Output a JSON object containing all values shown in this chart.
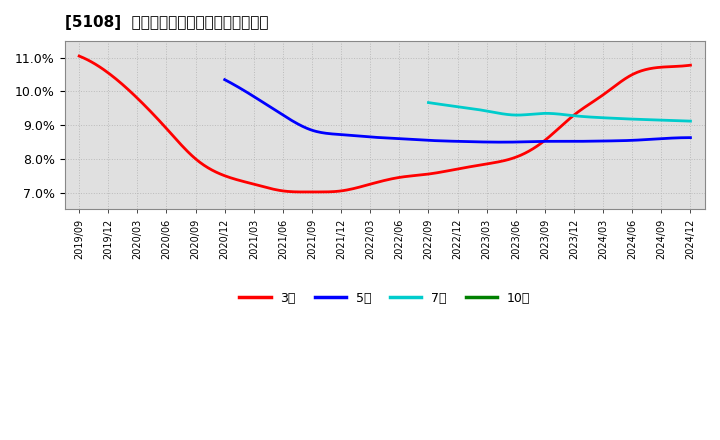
{
  "title": "[5108]  経常利益マージンの平均値の推移",
  "background_color": "#ffffff",
  "plot_background_color": "#e0e0e0",
  "grid_color": "#bbbbbb",
  "y_min": 6.5,
  "y_max": 11.5,
  "y_ticks": [
    7.0,
    8.0,
    9.0,
    10.0,
    11.0
  ],
  "series": {
    "3year": {
      "color": "#ff0000",
      "label": "3年",
      "points": [
        [
          "2019/09",
          11.05
        ],
        [
          "2019/12",
          10.55
        ],
        [
          "2020/03",
          9.8
        ],
        [
          "2020/06",
          8.9
        ],
        [
          "2020/09",
          8.0
        ],
        [
          "2020/12",
          7.5
        ],
        [
          "2021/03",
          7.25
        ],
        [
          "2021/06",
          7.05
        ],
        [
          "2021/09",
          7.02
        ],
        [
          "2021/12",
          7.05
        ],
        [
          "2022/03",
          7.25
        ],
        [
          "2022/06",
          7.45
        ],
        [
          "2022/09",
          7.55
        ],
        [
          "2022/12",
          7.7
        ],
        [
          "2023/03",
          7.85
        ],
        [
          "2023/06",
          8.05
        ],
        [
          "2023/09",
          8.55
        ],
        [
          "2023/12",
          9.3
        ],
        [
          "2024/03",
          9.9
        ],
        [
          "2024/06",
          10.5
        ],
        [
          "2024/09",
          10.72
        ],
        [
          "2024/12",
          10.78
        ]
      ]
    },
    "5year": {
      "color": "#0000ff",
      "label": "5年",
      "points": [
        [
          "2020/12",
          10.35
        ],
        [
          "2021/03",
          9.85
        ],
        [
          "2021/06",
          9.3
        ],
        [
          "2021/09",
          8.85
        ],
        [
          "2021/12",
          8.72
        ],
        [
          "2022/03",
          8.65
        ],
        [
          "2022/06",
          8.6
        ],
        [
          "2022/09",
          8.55
        ],
        [
          "2022/12",
          8.52
        ],
        [
          "2023/03",
          8.5
        ],
        [
          "2023/06",
          8.5
        ],
        [
          "2023/09",
          8.52
        ],
        [
          "2023/12",
          8.52
        ],
        [
          "2024/03",
          8.53
        ],
        [
          "2024/06",
          8.55
        ],
        [
          "2024/09",
          8.6
        ],
        [
          "2024/12",
          8.63
        ]
      ]
    },
    "7year": {
      "color": "#00cccc",
      "label": "7年",
      "points": [
        [
          "2022/09",
          9.67
        ],
        [
          "2022/12",
          9.55
        ],
        [
          "2023/03",
          9.42
        ],
        [
          "2023/06",
          9.3
        ],
        [
          "2023/09",
          9.35
        ],
        [
          "2023/12",
          9.28
        ],
        [
          "2024/03",
          9.22
        ],
        [
          "2024/06",
          9.18
        ],
        [
          "2024/09",
          9.15
        ],
        [
          "2024/12",
          9.12
        ]
      ]
    },
    "10year": {
      "color": "#008000",
      "label": "10年",
      "points": []
    }
  },
  "legend_entries": [
    "3年",
    "5年",
    "7年",
    "10年"
  ],
  "legend_colors": [
    "#ff0000",
    "#0000ff",
    "#00cccc",
    "#008000"
  ],
  "x_labels": [
    "2019/09",
    "2019/12",
    "2020/03",
    "2020/06",
    "2020/09",
    "2020/12",
    "2021/03",
    "2021/06",
    "2021/09",
    "2021/12",
    "2022/03",
    "2022/06",
    "2022/09",
    "2022/12",
    "2023/03",
    "2023/06",
    "2023/09",
    "2023/12",
    "2024/03",
    "2024/06",
    "2024/09",
    "2024/12"
  ]
}
